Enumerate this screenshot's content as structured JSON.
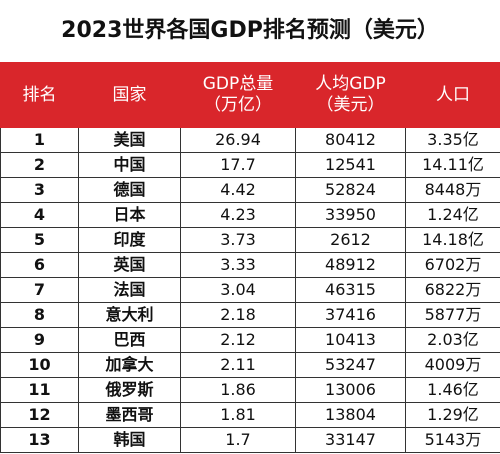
{
  "title": "2023世界各国GDP排名预测（美元）",
  "table": {
    "header": [
      [
        "排名"
      ],
      [
        "国家"
      ],
      [
        "GDP总量",
        "（万亿）"
      ],
      [
        "人均GDP",
        "（美元）"
      ],
      [
        "人口"
      ]
    ],
    "rows": [
      [
        1,
        "美国",
        26.94,
        80412,
        "3.35亿"
      ],
      [
        2,
        "中国",
        17.7,
        12541,
        "14.11亿"
      ],
      [
        3,
        "德国",
        4.42,
        52824,
        "8448万"
      ],
      [
        4,
        "日本",
        4.23,
        33950,
        "1.24亿"
      ],
      [
        5,
        "印度",
        3.73,
        2612,
        "14.18亿"
      ],
      [
        6,
        "英国",
        3.33,
        48912,
        "6702万"
      ],
      [
        7,
        "法国",
        3.04,
        46315,
        "6822万"
      ],
      [
        8,
        "意大利",
        2.18,
        37416,
        "5877万"
      ],
      [
        9,
        "巴西",
        2.12,
        10413,
        "2.03亿"
      ],
      [
        10,
        "加拿大",
        2.11,
        53247,
        "4009万"
      ],
      [
        11,
        "俄罗斯",
        1.86,
        13006,
        "1.46亿"
      ],
      [
        12,
        "墨西哥",
        1.81,
        13804,
        "1.29亿"
      ],
      [
        13,
        "韩国",
        1.7,
        33147,
        "5143万"
      ]
    ]
  }
}
